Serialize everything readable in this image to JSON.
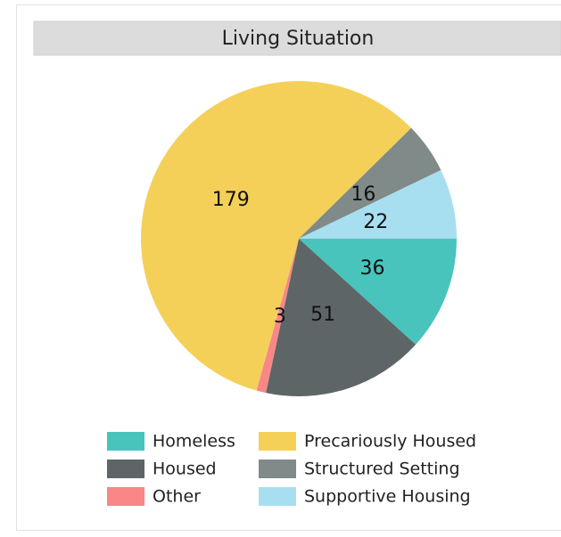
{
  "chart_data": {
    "type": "pie",
    "title": "Living Situation",
    "categories": [
      "Homeless",
      "Housed",
      "Other",
      "Precariously Housed",
      "Structured Setting",
      "Supportive Housing"
    ],
    "values": [
      36,
      51,
      3,
      179,
      16,
      22
    ],
    "colors": [
      "#48c4bc",
      "#5e6566",
      "#f98787",
      "#f4d058",
      "#7f8a89",
      "#a7dff0"
    ]
  }
}
